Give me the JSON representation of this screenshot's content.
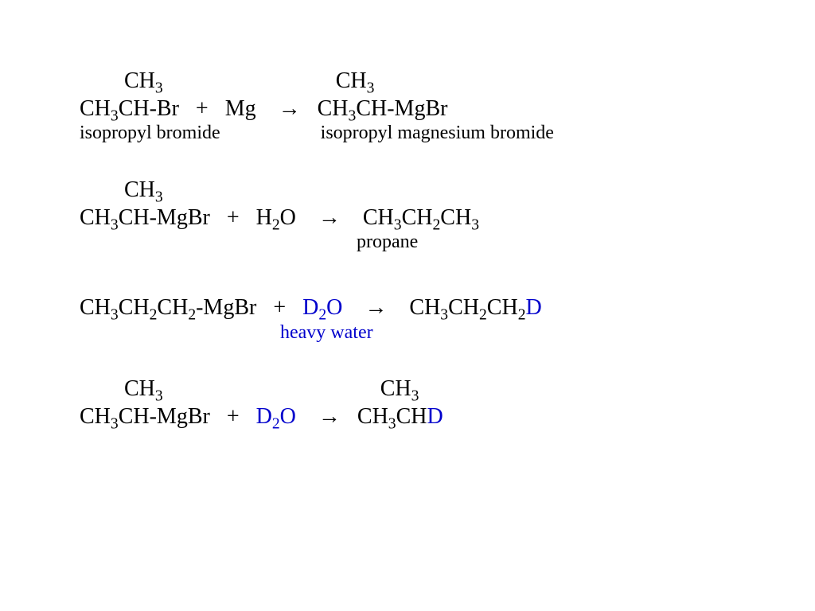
{
  "colors": {
    "text": "#000000",
    "accent": "#0000cc",
    "background": "#ffffff"
  },
  "typography": {
    "formula_font": "Times New Roman",
    "formula_size_pt": 28,
    "label_size_pt": 24
  },
  "r1": {
    "top_left": "CH",
    "top_left_sub": "3",
    "top_right": "CH",
    "top_right_sub": "3",
    "lhs_a": "CH",
    "lhs_a_sub": "3",
    "lhs_b": "CH-Br   +   Mg    ",
    "arrow": "→",
    "rhs_a": "   CH",
    "rhs_a_sub": "3",
    "rhs_b": "CH-MgBr",
    "label_left": "isopropyl bromide",
    "label_right": "isopropyl magnesium bromide"
  },
  "r2": {
    "top_left": "CH",
    "top_left_sub": "3",
    "lhs_a": "CH",
    "lhs_a_sub": "3",
    "lhs_b": "CH-MgBr   +   H",
    "h2o_sub": "2",
    "h2o_end": "O    ",
    "arrow": "→",
    "rhs_a": "    CH",
    "rhs_a_sub": "3",
    "rhs_b": "CH",
    "rhs_b_sub": "2",
    "rhs_c": "CH",
    "rhs_c_sub": "3",
    "label": "propane"
  },
  "r3": {
    "lhs_a": "CH",
    "s1": "3",
    "lhs_b": "CH",
    "s2": "2",
    "lhs_c": "CH",
    "s3": "2",
    "lhs_d": "-MgBr   +   ",
    "d2o_a": "D",
    "d2o_sub": "2",
    "d2o_b": "O",
    "mid": "    ",
    "arrow": "→",
    "rhs_pre": "    CH",
    "rs1": "3",
    "rhs_b": "CH",
    "rs2": "2",
    "rhs_c": "CH",
    "rs3": "2",
    "rhs_d": "D",
    "label": "heavy water"
  },
  "r4": {
    "top_left": "CH",
    "top_left_sub": "3",
    "top_right": "CH",
    "top_right_sub": "3",
    "lhs_a": "CH",
    "s1": "3",
    "lhs_b": "CH-MgBr   +   ",
    "d2o_a": "D",
    "d2o_sub": "2",
    "d2o_b": "O",
    "mid": "    ",
    "arrow": "→",
    "rhs_a": "   CH",
    "rs1": "3",
    "rhs_b": "CH",
    "rhs_d": "D"
  }
}
